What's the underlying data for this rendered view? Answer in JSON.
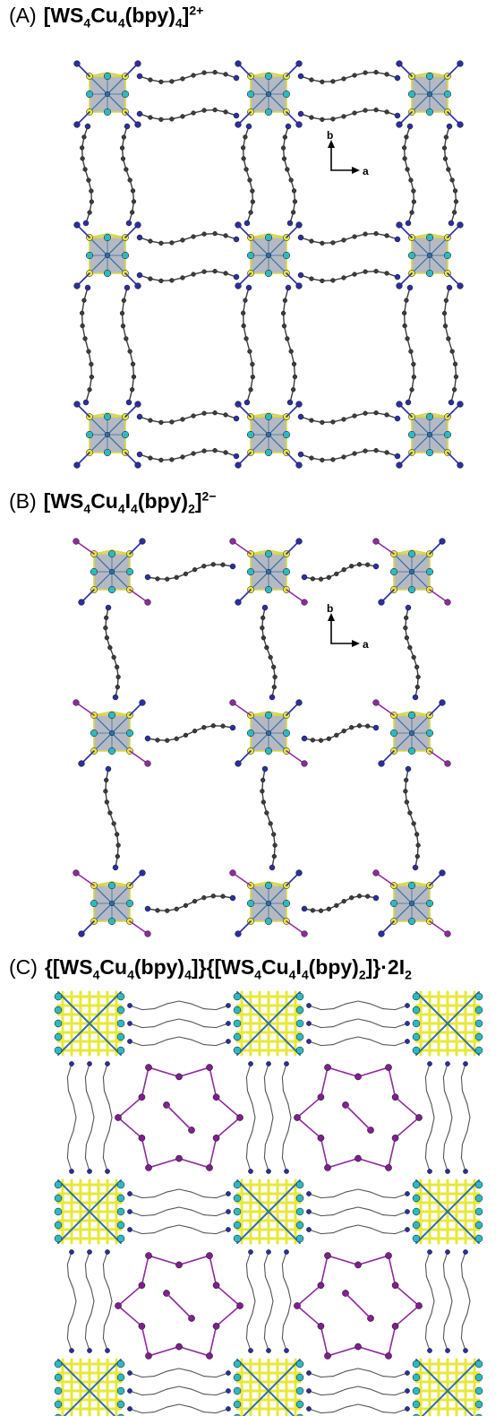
{
  "panels": [
    {
      "id": "A",
      "letter": "(A)",
      "formula_parts": [
        {
          "t": "[WS",
          "s": "n"
        },
        {
          "t": "4",
          "s": "sub"
        },
        {
          "t": "Cu",
          "s": "n"
        },
        {
          "t": "4",
          "s": "sub"
        },
        {
          "t": "(bpy)",
          "s": "n"
        },
        {
          "t": "4",
          "s": "sub"
        },
        {
          "t": "]",
          "s": "n"
        },
        {
          "t": "2+",
          "s": "sup"
        }
      ],
      "axes": {
        "b": "b",
        "a": "a"
      }
    },
    {
      "id": "B",
      "letter": "(B)",
      "formula_parts": [
        {
          "t": "[WS",
          "s": "n"
        },
        {
          "t": "4",
          "s": "sub"
        },
        {
          "t": "Cu",
          "s": "n"
        },
        {
          "t": "4",
          "s": "sub"
        },
        {
          "t": "I",
          "s": "n"
        },
        {
          "t": "4",
          "s": "sub"
        },
        {
          "t": "(bpy)",
          "s": "n"
        },
        {
          "t": "2",
          "s": "sub"
        },
        {
          "t": "]",
          "s": "n"
        },
        {
          "t": "2−",
          "s": "sup"
        }
      ],
      "axes": {
        "b": "b",
        "a": "a"
      }
    },
    {
      "id": "C",
      "letter": "(C)",
      "formula_parts": [
        {
          "t": "{[WS",
          "s": "n"
        },
        {
          "t": "4",
          "s": "sub"
        },
        {
          "t": "Cu",
          "s": "n"
        },
        {
          "t": "4",
          "s": "sub"
        },
        {
          "t": "(bpy)",
          "s": "n"
        },
        {
          "t": "4",
          "s": "sub"
        },
        {
          "t": "]}{[WS",
          "s": "n"
        },
        {
          "t": "4",
          "s": "sub"
        },
        {
          "t": "Cu",
          "s": "n"
        },
        {
          "t": "4",
          "s": "sub"
        },
        {
          "t": "I",
          "s": "n"
        },
        {
          "t": "4",
          "s": "sub"
        },
        {
          "t": "(bpy)",
          "s": "n"
        },
        {
          "t": "2",
          "s": "sub"
        },
        {
          "t": "]}·2I",
          "s": "n"
        },
        {
          "t": "2",
          "s": "sub"
        }
      ]
    }
  ],
  "colors": {
    "cluster_face": "#a9adb7",
    "sulfur": "#e8e83a",
    "sulfur_bond": "#d8d840",
    "copper": "#2fb8c4",
    "tungsten_bond": "#2f6fa8",
    "nitrogen": "#2b2f9e",
    "carbon": "#3c3c3c",
    "iodine": "#7d1f8c",
    "iodine_bond": "#8e2b9c"
  }
}
